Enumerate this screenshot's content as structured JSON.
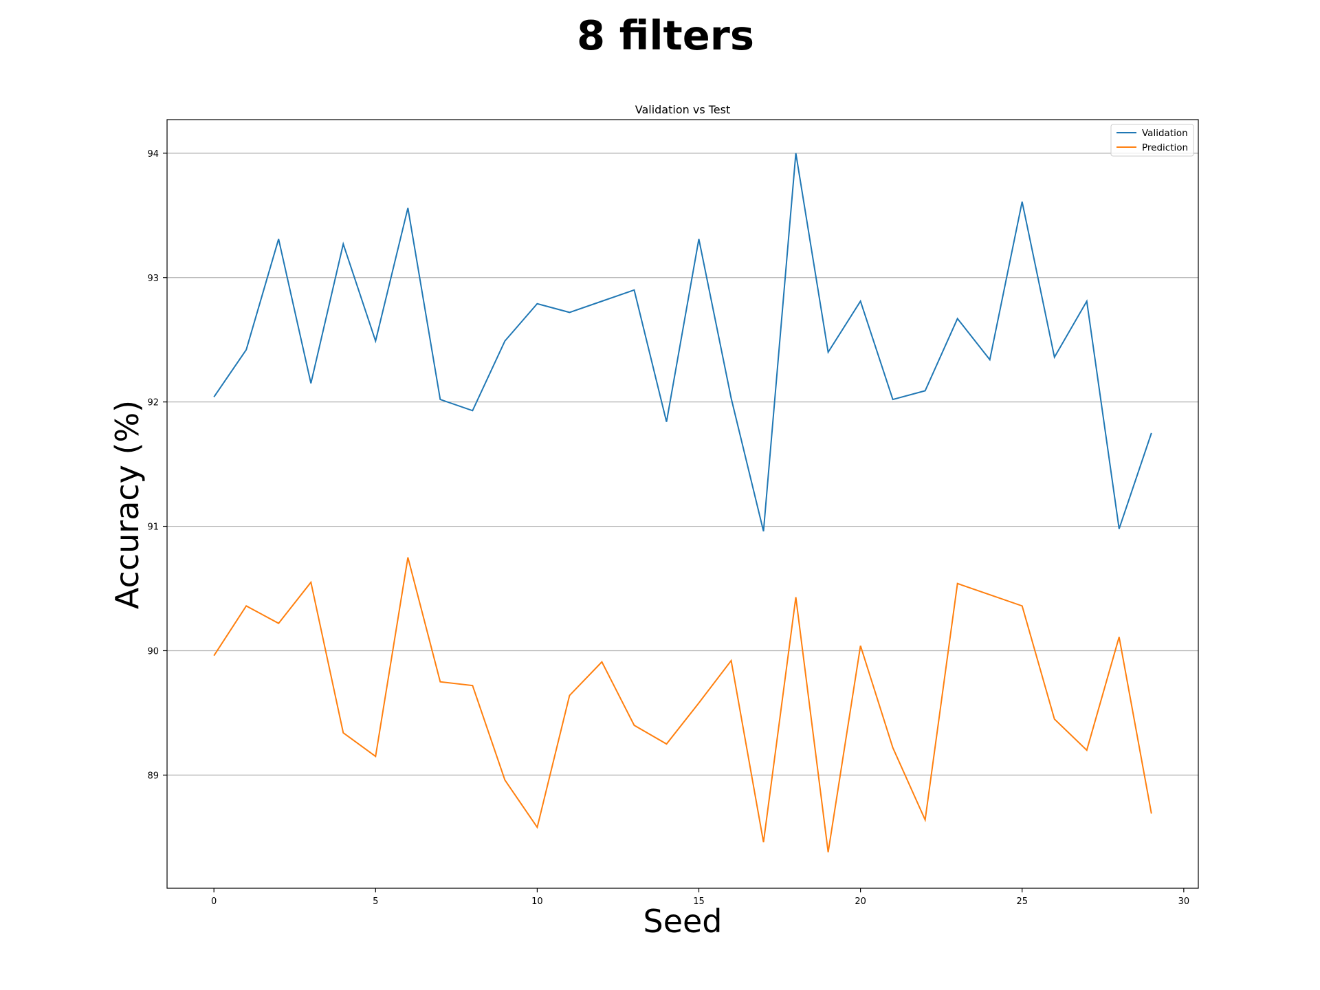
{
  "figure": {
    "suptitle": "8 filters"
  },
  "chart_data": {
    "type": "line",
    "title": "Validation vs Test",
    "xlabel": "Seed",
    "ylabel": "Accuracy (%)",
    "xlim": [
      -1.45,
      30.45
    ],
    "ylim": [
      88.09,
      94.27
    ],
    "xticks": [
      0,
      5,
      10,
      15,
      20,
      25,
      30
    ],
    "yticks": [
      89,
      90,
      91,
      92,
      93,
      94
    ],
    "grid": "y",
    "legend": "top-right",
    "x": [
      0,
      1,
      2,
      3,
      4,
      5,
      6,
      7,
      8,
      9,
      10,
      11,
      12,
      13,
      14,
      15,
      16,
      17,
      18,
      19,
      20,
      21,
      22,
      23,
      24,
      25,
      26,
      27,
      28,
      29
    ],
    "series": [
      {
        "name": "Validation",
        "color": "#1f77b4",
        "values": [
          92.04,
          92.42,
          93.31,
          92.15,
          93.27,
          92.49,
          93.56,
          92.02,
          91.93,
          92.49,
          92.79,
          92.72,
          92.81,
          92.9,
          91.84,
          93.31,
          92.03,
          90.96,
          94.0,
          92.4,
          92.81,
          92.02,
          92.09,
          92.67,
          92.34,
          93.61,
          92.36,
          92.81,
          90.98,
          91.75
        ]
      },
      {
        "name": "Prediction",
        "color": "#ff7f0e",
        "values": [
          89.96,
          90.36,
          90.22,
          90.55,
          89.34,
          89.15,
          90.75,
          89.75,
          89.72,
          88.96,
          88.58,
          89.64,
          89.91,
          89.4,
          89.25,
          89.58,
          89.92,
          88.46,
          90.43,
          88.38,
          90.04,
          89.22,
          88.64,
          90.54,
          90.45,
          90.36,
          89.45,
          89.2,
          90.11,
          88.69
        ]
      }
    ]
  }
}
